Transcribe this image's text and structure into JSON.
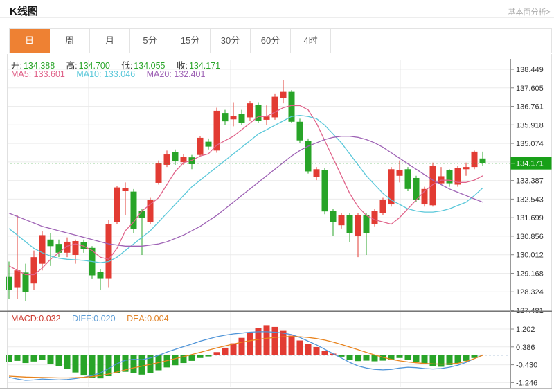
{
  "header": {
    "title": "K线图",
    "link": "基本面分析>"
  },
  "tabs": {
    "items": [
      "日",
      "周",
      "月",
      "5分",
      "15分",
      "30分",
      "60分",
      "4时"
    ],
    "active_index": 0,
    "active_bg": "#ee8133"
  },
  "ohlc_legend": {
    "open_label": "开:",
    "open_value": "134.388",
    "high_label": "高:",
    "high_value": "134.700",
    "low_label": "低:",
    "low_value": "134.055",
    "close_label": "收:",
    "close_value": "134.171",
    "value_color": "#2aa52a"
  },
  "ma_legend": {
    "ma5_label": "MA5:",
    "ma5_value": "133.601",
    "ma5_color": "#e0638a",
    "ma10_label": "MA10:",
    "ma10_value": "133.046",
    "ma10_color": "#5bc8da",
    "ma20_label": "MA20:",
    "ma20_value": "132.401",
    "ma20_color": "#9e62b5"
  },
  "macd_legend": {
    "macd_label": "MACD:",
    "macd_value": "0.032",
    "macd_color": "#cd3a2f",
    "diff_label": "DIFF:",
    "diff_value": "0.020",
    "diff_color": "#5b9bd5",
    "dea_label": "DEA:",
    "dea_value": "0.004",
    "dea_color": "#e2862c"
  },
  "chart_data": {
    "type": "candlestick",
    "title": "K线图",
    "legend_position": "top-left-inside",
    "grid": true,
    "main_axis_labels": [
      "138.449",
      "137.605",
      "136.761",
      "135.918",
      "135.074",
      null,
      "133.387",
      "132.543",
      "131.699",
      "130.856",
      "130.012",
      "129.168",
      "128.324",
      "127.481"
    ],
    "current_price": 134.171,
    "current_price_label": "134.171",
    "macd_axis_labels": [
      "1.202",
      "0.386",
      "-0.430",
      "-1.246"
    ],
    "vgrid_x": [
      128,
      333,
      578
    ],
    "colors": {
      "up": "#e23b33",
      "down": "#28a428",
      "ma5": "#e0638a",
      "ma10": "#5bc8da",
      "ma20": "#9e62b5",
      "diff": "#4f94d8",
      "dea": "#e8831d",
      "grid": "#ececec",
      "vgrid": "#e7e7e7",
      "axis_text": "#333333",
      "axis_line": "#999999",
      "tick": "#888888",
      "separator": "#777777",
      "outer_border": "#e0e0e0",
      "current_line": "#2ca62c",
      "badge_bg": "#18a018",
      "badge_text": "#ffffff",
      "zero_line": "#b9cbdc"
    },
    "candles": [
      [
        129.0,
        129.7,
        128.0,
        128.4
      ],
      [
        128.5,
        131.8,
        128.0,
        129.3
      ],
      [
        129.2,
        129.6,
        127.9,
        128.3
      ],
      [
        128.7,
        130.2,
        128.4,
        129.9
      ],
      [
        129.6,
        131.1,
        129.3,
        130.9
      ],
      [
        130.7,
        131.0,
        129.5,
        130.4
      ],
      [
        130.5,
        130.7,
        129.9,
        130.1
      ],
      [
        130.1,
        130.8,
        129.9,
        130.6
      ],
      [
        130.0,
        130.7,
        129.6,
        130.63
      ],
      [
        130.57,
        130.7,
        130.1,
        130.26
      ],
      [
        130.32,
        130.4,
        128.9,
        129.07
      ],
      [
        129.23,
        129.35,
        128.41,
        128.91
      ],
      [
        128.91,
        131.6,
        128.5,
        131.41
      ],
      [
        131.51,
        133.15,
        131.4,
        133.07
      ],
      [
        132.9,
        133.3,
        131.82,
        133.05
      ],
      [
        132.88,
        133.0,
        131.0,
        131.19
      ],
      [
        132.0,
        132.1,
        130.0,
        131.7
      ],
      [
        131.51,
        132.6,
        131.4,
        132.51
      ],
      [
        133.28,
        134.3,
        133.2,
        134.16
      ],
      [
        134.1,
        134.75,
        134.0,
        134.57
      ],
      [
        134.69,
        134.8,
        134.1,
        134.28
      ],
      [
        134.22,
        134.6,
        134.1,
        134.47
      ],
      [
        134.44,
        134.55,
        133.9,
        134.13
      ],
      [
        134.55,
        135.4,
        134.45,
        135.33
      ],
      [
        135.15,
        135.3,
        134.8,
        134.93
      ],
      [
        134.75,
        136.7,
        134.65,
        136.56
      ],
      [
        136.46,
        136.6,
        135.9,
        136.08
      ],
      [
        136.17,
        136.95,
        135.85,
        136.33
      ],
      [
        136.4,
        136.6,
        135.9,
        136.02
      ],
      [
        136.26,
        137.0,
        136.1,
        136.9
      ],
      [
        136.84,
        136.95,
        136.0,
        136.1
      ],
      [
        136.15,
        136.8,
        135.9,
        136.3
      ],
      [
        136.26,
        137.35,
        136.15,
        137.2
      ],
      [
        137.14,
        137.97,
        136.9,
        137.42
      ],
      [
        137.42,
        137.5,
        136.0,
        136.06
      ],
      [
        136.06,
        136.2,
        135.1,
        135.21
      ],
      [
        135.2,
        135.3,
        133.7,
        133.8
      ],
      [
        133.55,
        134.0,
        133.4,
        133.9
      ],
      [
        133.85,
        133.95,
        131.85,
        131.98
      ],
      [
        132.0,
        132.1,
        130.85,
        131.5
      ],
      [
        131.35,
        131.9,
        131.2,
        131.8
      ],
      [
        131.8,
        131.9,
        130.6,
        131.0
      ],
      [
        130.85,
        131.9,
        129.9,
        131.8
      ],
      [
        131.8,
        131.9,
        130.0,
        131.0
      ],
      [
        131.4,
        132.1,
        131.3,
        132.0
      ],
      [
        131.9,
        132.6,
        131.8,
        132.5
      ],
      [
        132.3,
        134.0,
        132.2,
        133.9
      ],
      [
        133.6,
        134.3,
        133.3,
        133.85
      ],
      [
        133.9,
        134.0,
        132.9,
        133.0
      ],
      [
        133.5,
        133.6,
        132.4,
        132.5
      ],
      [
        132.3,
        133.1,
        132.2,
        133.0
      ],
      [
        132.26,
        134.2,
        132.2,
        134.05
      ],
      [
        133.26,
        134.0,
        133.2,
        133.58
      ],
      [
        133.86,
        133.9,
        133.1,
        133.26
      ],
      [
        133.2,
        134.05,
        133.1,
        133.97
      ],
      [
        133.9,
        134.2,
        133.6,
        134.0
      ],
      [
        134.0,
        134.75,
        133.9,
        134.7
      ],
      [
        134.388,
        134.7,
        134.055,
        134.171
      ]
    ],
    "ma5": [
      129.5,
      129.3,
      129.1,
      129.1,
      129.4,
      129.8,
      130.1,
      130.4,
      130.5,
      130.4,
      130.2,
      129.9,
      129.8,
      130.3,
      131.1,
      131.5,
      132.0,
      132.3,
      132.6,
      133.2,
      133.8,
      134.2,
      134.3,
      134.5,
      134.6,
      135.0,
      135.2,
      135.4,
      135.7,
      136.0,
      136.3,
      136.3,
      136.5,
      136.7,
      136.8,
      136.8,
      136.6,
      136.0,
      135.2,
      134.4,
      133.6,
      132.8,
      132.2,
      131.8,
      131.6,
      131.5,
      131.4,
      131.7,
      132.1,
      132.5,
      132.9,
      133.2,
      133.4,
      133.4,
      133.3,
      133.3,
      133.4,
      133.601
    ],
    "ma10": [
      131.2,
      130.9,
      130.6,
      130.3,
      130.1,
      129.95,
      129.85,
      129.8,
      129.78,
      129.75,
      129.7,
      129.65,
      129.7,
      129.9,
      130.2,
      130.5,
      130.8,
      131.1,
      131.5,
      131.9,
      132.3,
      132.7,
      133.1,
      133.4,
      133.7,
      134.0,
      134.3,
      134.6,
      134.9,
      135.2,
      135.5,
      135.7,
      135.9,
      136.1,
      136.3,
      136.35,
      136.3,
      136.2,
      135.9,
      135.5,
      135.1,
      134.6,
      134.1,
      133.6,
      133.2,
      132.8,
      132.5,
      132.3,
      132.1,
      132.0,
      131.95,
      131.95,
      132.0,
      132.1,
      132.25,
      132.4,
      132.7,
      133.046
    ],
    "ma20": [
      131.9,
      131.75,
      131.6,
      131.45,
      131.3,
      131.2,
      131.1,
      131.0,
      130.9,
      130.8,
      130.7,
      130.6,
      130.5,
      130.45,
      130.4,
      130.4,
      130.4,
      130.45,
      130.5,
      130.6,
      130.75,
      130.9,
      131.1,
      131.3,
      131.55,
      131.8,
      132.1,
      132.4,
      132.7,
      133.0,
      133.3,
      133.6,
      133.9,
      134.2,
      134.5,
      134.75,
      134.95,
      135.1,
      135.25,
      135.35,
      135.4,
      135.4,
      135.35,
      135.25,
      135.1,
      134.9,
      134.65,
      134.4,
      134.15,
      133.9,
      133.65,
      133.4,
      133.2,
      133.0,
      132.85,
      132.7,
      132.55,
      132.401
    ],
    "macd_bars": [
      -0.3,
      -0.25,
      -0.35,
      -0.28,
      -0.22,
      -0.38,
      -0.5,
      -0.62,
      -0.78,
      -0.92,
      -1.02,
      -1.05,
      -0.95,
      -0.82,
      -0.75,
      -0.82,
      -0.88,
      -0.8,
      -0.68,
      -0.55,
      -0.45,
      -0.35,
      -0.25,
      -0.12,
      -0.05,
      0.15,
      0.35,
      0.55,
      0.8,
      1.05,
      1.25,
      1.38,
      1.3,
      1.12,
      0.9,
      0.68,
      0.52,
      0.38,
      0.22,
      0.08,
      -0.06,
      -0.2,
      -0.26,
      -0.24,
      -0.27,
      -0.24,
      -0.2,
      -0.12,
      -0.22,
      -0.3,
      -0.4,
      -0.5,
      -0.52,
      -0.44,
      -0.36,
      -0.25,
      -0.12,
      0.032
    ],
    "diff_line": [
      -1.0,
      -1.08,
      -1.14,
      -1.12,
      -1.08,
      -1.1,
      -1.12,
      -1.1,
      -1.06,
      -1.0,
      -0.92,
      -0.8,
      -0.6,
      -0.38,
      -0.22,
      -0.18,
      -0.2,
      -0.12,
      0.0,
      0.15,
      0.28,
      0.4,
      0.52,
      0.65,
      0.75,
      0.85,
      0.92,
      0.98,
      1.02,
      1.06,
      1.08,
      1.08,
      1.06,
      1.02,
      0.95,
      0.82,
      0.65,
      0.48,
      0.28,
      0.08,
      -0.12,
      -0.32,
      -0.48,
      -0.58,
      -0.64,
      -0.66,
      -0.64,
      -0.58,
      -0.54,
      -0.56,
      -0.6,
      -0.62,
      -0.6,
      -0.54,
      -0.45,
      -0.32,
      -0.15,
      0.02
    ],
    "dea_line": [
      -0.95,
      -0.97,
      -0.99,
      -1.0,
      -1.01,
      -1.02,
      -1.03,
      -1.03,
      -1.02,
      -1.0,
      -0.97,
      -0.92,
      -0.85,
      -0.76,
      -0.66,
      -0.57,
      -0.49,
      -0.41,
      -0.33,
      -0.24,
      -0.15,
      -0.06,
      0.04,
      0.14,
      0.24,
      0.34,
      0.43,
      0.52,
      0.6,
      0.67,
      0.73,
      0.78,
      0.82,
      0.85,
      0.86,
      0.85,
      0.82,
      0.77,
      0.7,
      0.61,
      0.5,
      0.38,
      0.26,
      0.14,
      0.02,
      -0.09,
      -0.18,
      -0.25,
      -0.3,
      -0.34,
      -0.37,
      -0.39,
      -0.4,
      -0.39,
      -0.36,
      -0.28,
      -0.15,
      0.004
    ]
  }
}
